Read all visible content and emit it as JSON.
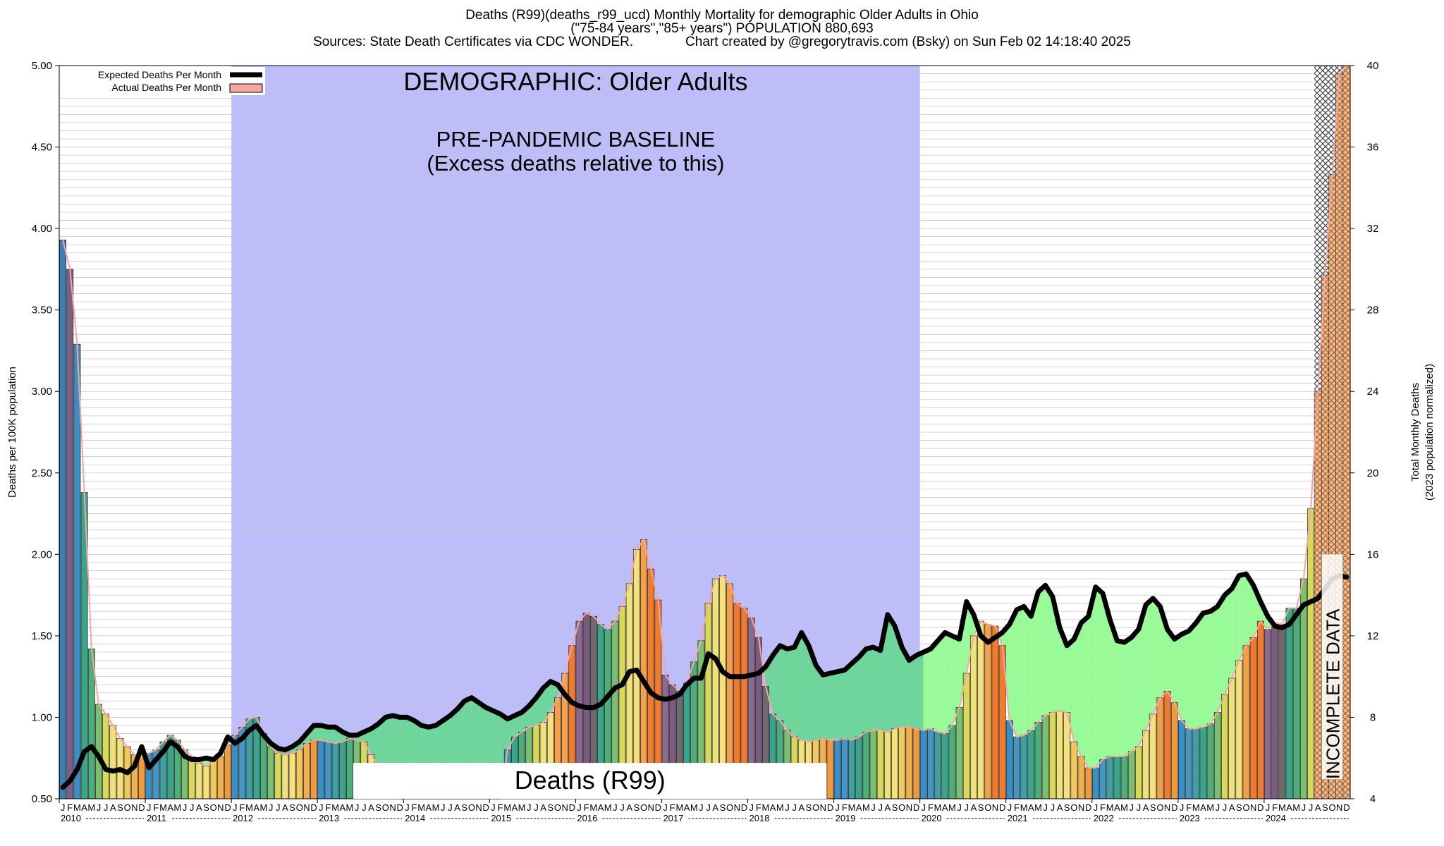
{
  "titles": {
    "line1": "Deaths (R99)(deaths_r99_ucd) Monthly Mortality for demographic Older Adults in Ohio",
    "line2": "(\"75-84 years\",\"85+ years\") POPULATION 880,693",
    "line3": "Sources: State Death Certificates via CDC WONDER.              Chart created by @gregorytravis.com (Bsky) on Sun Feb 02 14:18:40 2025"
  },
  "annotations": {
    "demographic": "DEMOGRAPHIC: Older Adults",
    "baseline_line1": "PRE-PANDEMIC BASELINE",
    "baseline_line2": "(Excess deaths relative to this)",
    "cause_label": "Deaths (R99)",
    "incomplete": "INCOMPLETE DATA"
  },
  "legend": {
    "expected": "Expected Deaths Per Month",
    "actual": "Actual Deaths Per Month"
  },
  "axes": {
    "left_label": "Deaths per 100K population",
    "right_label_line1": "Total Monthly Deaths",
    "right_label_line2": "(2023 population normalized)"
  },
  "colors": {
    "baseline_band": "#bdbdfb",
    "excess_fill": "#98fb98",
    "excess_fill_baseline": "#6fd69b",
    "expected_line": "#000000",
    "actual_line": "#f4a6a0",
    "incomplete_hatch": "#444444"
  },
  "chart_data": {
    "type": "bar",
    "x_start": "2010-01",
    "x_end": "2024-12",
    "frequency": "monthly",
    "left_ylim": [
      0.5,
      5.0
    ],
    "left_ticks": [
      "0.50",
      "1.00",
      "1.50",
      "2.00",
      "2.50",
      "3.00",
      "3.50",
      "4.00",
      "4.50",
      "5.00"
    ],
    "right_ylim": [
      4,
      40
    ],
    "right_ticks": [
      "4",
      "8",
      "12",
      "16",
      "20",
      "24",
      "28",
      "32",
      "36",
      "40"
    ],
    "baseline_period": [
      "2012-01",
      "2019-12"
    ],
    "incomplete_period": [
      "2024-08",
      "2024-12"
    ],
    "years": [
      "2010",
      "2011",
      "2012",
      "2013",
      "2014",
      "2015",
      "2016",
      "2017",
      "2018",
      "2019",
      "2020",
      "2021",
      "2022",
      "2023",
      "2024"
    ],
    "month_letters": [
      "J",
      "F",
      "M",
      "A",
      "M",
      "J",
      "J",
      "A",
      "S",
      "O",
      "N",
      "D"
    ],
    "series": [
      {
        "name": "Actual Deaths Per Month",
        "values": [
          3.93,
          3.75,
          3.29,
          2.38,
          1.42,
          1.08,
          1.02,
          0.95,
          0.87,
          0.82,
          0.77,
          0.75,
          0.78,
          0.8,
          0.85,
          0.89,
          0.86,
          0.8,
          0.76,
          0.72,
          0.7,
          0.73,
          0.76,
          0.83,
          0.89,
          0.94,
          0.99,
          1.0,
          0.9,
          0.82,
          0.78,
          0.77,
          0.78,
          0.8,
          0.84,
          0.86,
          0.86,
          0.85,
          0.84,
          0.85,
          0.87,
          0.86,
          0.85,
          0.77,
          0.7,
          0.6,
          0.55,
          0.5,
          0.5,
          0.5,
          0.5,
          0.5,
          0.5,
          0.5,
          0.5,
          0.5,
          0.5,
          0.5,
          0.5,
          0.5,
          0.5,
          0.5,
          0.8,
          0.88,
          0.91,
          0.94,
          0.95,
          0.97,
          1.03,
          1.12,
          1.27,
          1.44,
          1.59,
          1.64,
          1.62,
          1.57,
          1.54,
          1.59,
          1.68,
          1.82,
          2.03,
          2.09,
          1.91,
          1.72,
          1.26,
          1.2,
          1.16,
          1.21,
          1.34,
          1.47,
          1.7,
          1.85,
          1.87,
          1.82,
          1.7,
          1.67,
          1.61,
          1.49,
          1.19,
          1.02,
          0.98,
          0.92,
          0.88,
          0.86,
          0.85,
          0.86,
          0.87,
          0.86,
          0.86,
          0.87,
          0.86,
          0.88,
          0.91,
          0.92,
          0.92,
          0.91,
          0.93,
          0.94,
          0.94,
          0.93,
          0.92,
          0.93,
          0.91,
          0.9,
          0.95,
          1.06,
          1.27,
          1.5,
          1.59,
          1.57,
          1.56,
          1.44,
          0.98,
          0.88,
          0.89,
          0.92,
          0.97,
          1.01,
          1.03,
          1.04,
          1.03,
          0.85,
          0.76,
          0.69,
          0.69,
          0.74,
          0.76,
          0.76,
          0.76,
          0.79,
          0.82,
          0.92,
          1.02,
          1.12,
          1.16,
          1.09,
          0.98,
          0.93,
          0.93,
          0.94,
          0.96,
          1.03,
          1.14,
          1.24,
          1.35,
          1.44,
          1.49,
          1.59,
          1.54,
          1.58,
          1.57,
          1.67,
          1.67,
          1.85,
          2.28,
          3.0,
          3.71,
          4.33,
          4.95,
          5.0
        ]
      },
      {
        "name": "Expected Deaths Per Month",
        "values": [
          0.57,
          0.61,
          0.68,
          0.79,
          0.82,
          0.76,
          0.68,
          0.67,
          0.68,
          0.66,
          0.7,
          0.82,
          0.69,
          0.74,
          0.79,
          0.85,
          0.82,
          0.76,
          0.74,
          0.74,
          0.75,
          0.74,
          0.78,
          0.88,
          0.84,
          0.87,
          0.92,
          0.95,
          0.89,
          0.84,
          0.81,
          0.8,
          0.82,
          0.85,
          0.9,
          0.95,
          0.95,
          0.94,
          0.94,
          0.91,
          0.89,
          0.89,
          0.91,
          0.93,
          0.96,
          1.0,
          1.01,
          1.0,
          1.0,
          0.98,
          0.95,
          0.94,
          0.95,
          0.98,
          1.01,
          1.05,
          1.1,
          1.12,
          1.09,
          1.06,
          1.04,
          1.02,
          0.99,
          1.01,
          1.03,
          1.07,
          1.12,
          1.18,
          1.22,
          1.2,
          1.14,
          1.09,
          1.07,
          1.06,
          1.06,
          1.08,
          1.13,
          1.18,
          1.2,
          1.28,
          1.29,
          1.22,
          1.15,
          1.12,
          1.11,
          1.12,
          1.14,
          1.2,
          1.24,
          1.24,
          1.39,
          1.36,
          1.28,
          1.25,
          1.25,
          1.25,
          1.26,
          1.27,
          1.31,
          1.38,
          1.44,
          1.42,
          1.43,
          1.52,
          1.44,
          1.32,
          1.26,
          1.27,
          1.28,
          1.29,
          1.33,
          1.37,
          1.42,
          1.43,
          1.41,
          1.63,
          1.56,
          1.43,
          1.35,
          1.38,
          1.4,
          1.42,
          1.47,
          1.52,
          1.5,
          1.48,
          1.71,
          1.63,
          1.5,
          1.46,
          1.49,
          1.52,
          1.57,
          1.66,
          1.68,
          1.62,
          1.77,
          1.81,
          1.74,
          1.55,
          1.44,
          1.48,
          1.58,
          1.62,
          1.8,
          1.76,
          1.6,
          1.47,
          1.46,
          1.49,
          1.54,
          1.69,
          1.73,
          1.68,
          1.54,
          1.48,
          1.51,
          1.53,
          1.58,
          1.64,
          1.65,
          1.68,
          1.75,
          1.79,
          1.87,
          1.88,
          1.81,
          1.71,
          1.62,
          1.56,
          1.55,
          1.57,
          1.63,
          1.69,
          1.71,
          1.73,
          1.79,
          1.85,
          1.87,
          1.86
        ]
      }
    ]
  }
}
